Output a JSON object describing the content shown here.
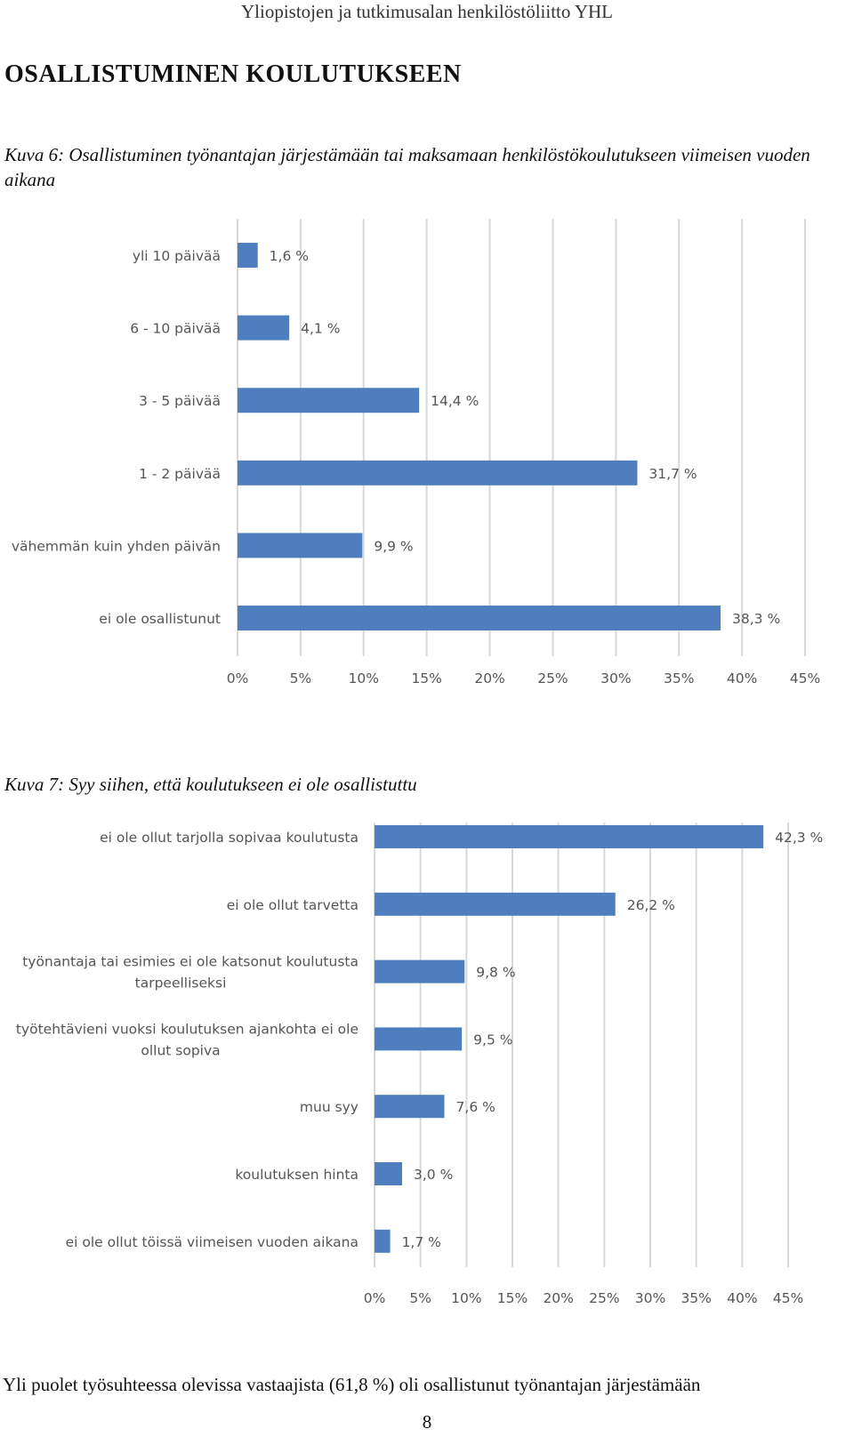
{
  "header": "Yliopistojen ja tutkimusalan henkilöstöliitto YHL",
  "section_title": "OSALLISTUMINEN KOULUTUKSEEN",
  "chart_data": [
    {
      "type": "bar",
      "orientation": "horizontal",
      "title": "Kuva 6: Osallistuminen työnantajan järjestämään tai maksamaan henkilöstökoulutukseen viimeisen vuoden aikana",
      "categories": [
        "yli 10 päivää",
        "6 - 10 päivää",
        "3 - 5 päivää",
        "1 - 2 päivää",
        "vähemmän kuin yhden päivän",
        "ei ole osallistunut"
      ],
      "values": [
        1.6,
        4.1,
        14.4,
        31.7,
        9.9,
        38.3
      ],
      "value_labels": [
        "1,6 %",
        "4,1 %",
        "14,4 %",
        "31,7 %",
        "9,9 %",
        "38,3 %"
      ],
      "x_ticks": [
        "0%",
        "5%",
        "10%",
        "15%",
        "20%",
        "25%",
        "30%",
        "35%",
        "40%",
        "45%"
      ],
      "xlim": [
        0,
        45
      ],
      "grid": true,
      "bar_color": "#4e7ebd"
    },
    {
      "type": "bar",
      "orientation": "horizontal",
      "title": "Kuva 7: Syy siihen, että koulutukseen ei ole osallistuttu",
      "categories": [
        "ei ole ollut tarjolla sopivaa koulutusta",
        "ei ole ollut tarvetta",
        "työnantaja tai esimies ei ole katsonut koulutusta tarpeelliseksi",
        "työtehtävieni vuoksi koulutuksen ajankohta ei ole ollut sopiva",
        "muu syy",
        "koulutuksen hinta",
        "ei ole ollut töissä viimeisen vuoden aikana"
      ],
      "category_lines": [
        [
          "ei ole ollut tarjolla sopivaa koulutusta"
        ],
        [
          "ei ole ollut tarvetta"
        ],
        [
          "työnantaja tai esimies ei ole katsonut koulutusta",
          "tarpeelliseksi"
        ],
        [
          "työtehtävieni vuoksi koulutuksen ajankohta ei ole",
          "ollut sopiva"
        ],
        [
          "muu syy"
        ],
        [
          "koulutuksen hinta"
        ],
        [
          "ei ole ollut töissä viimeisen vuoden aikana"
        ]
      ],
      "values": [
        42.3,
        26.2,
        9.8,
        9.5,
        7.6,
        3.0,
        1.7
      ],
      "value_labels": [
        "42,3 %",
        "26,2 %",
        "9,8 %",
        "9,5 %",
        "7,6 %",
        "3,0 %",
        "1,7 %"
      ],
      "x_ticks": [
        "0%",
        "5%",
        "10%",
        "15%",
        "20%",
        "25%",
        "30%",
        "35%",
        "40%",
        "45%"
      ],
      "xlim": [
        0,
        45
      ],
      "grid": true,
      "bar_color": "#4e7ebd"
    }
  ],
  "bottom_text": "Yli puolet työsuhteessa olevissa vastaajista (61,8 %) oli osallistunut työnantajan järjestämään",
  "page_number": "8"
}
